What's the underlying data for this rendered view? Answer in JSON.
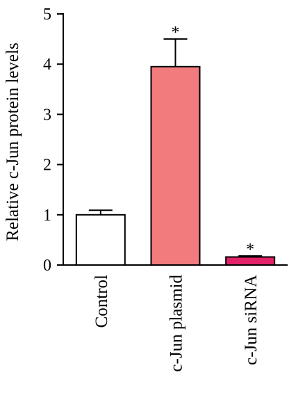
{
  "chart_data": {
    "type": "bar",
    "title": "",
    "xlabel": "",
    "ylabel": "Relative c-Jun protein levels",
    "ylim": [
      0,
      5
    ],
    "yticks": [
      0,
      1,
      2,
      3,
      4,
      5
    ],
    "grid": false,
    "categories": [
      "Control",
      "c-Jun plasmid",
      "c-Jun siRNA"
    ],
    "values": [
      1.0,
      3.95,
      0.16
    ],
    "errors": [
      0.09,
      0.55,
      0.02
    ],
    "colors": [
      "#ffffff",
      "#f27b7d",
      "#e3226a"
    ],
    "significance": [
      "",
      "*",
      "*"
    ]
  }
}
